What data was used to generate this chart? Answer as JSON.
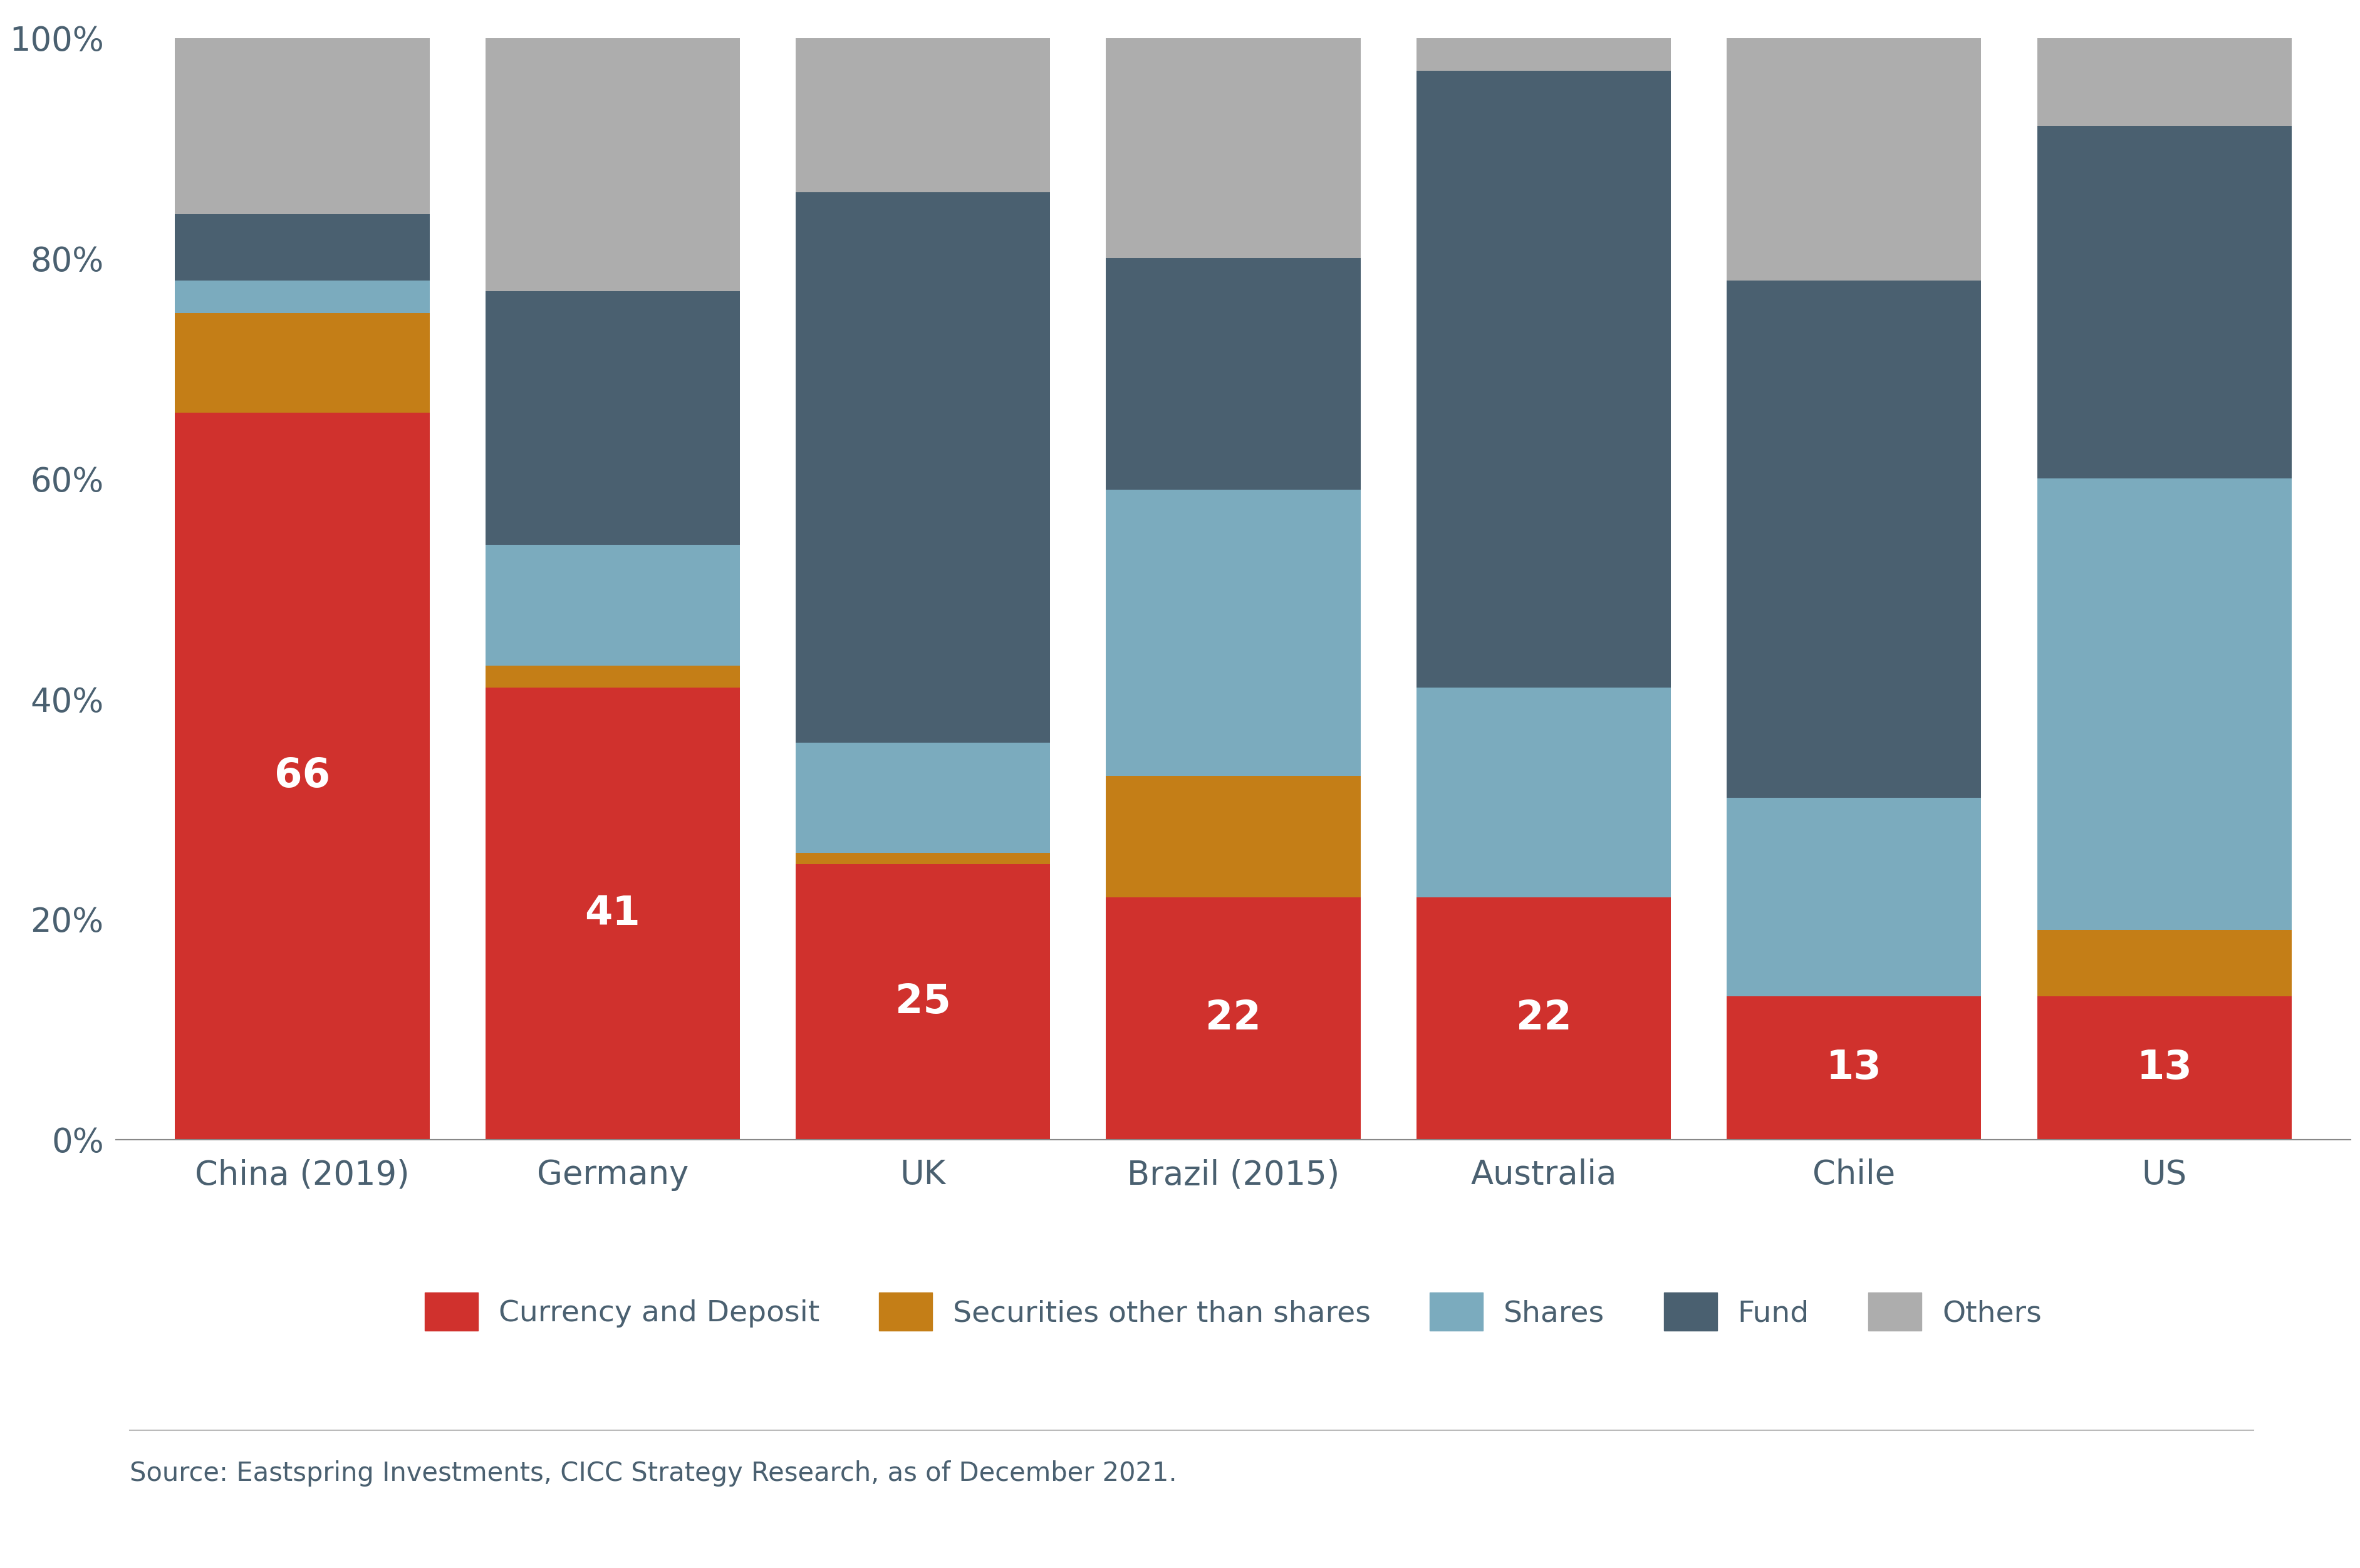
{
  "categories": [
    "China (2019)",
    "Germany",
    "UK",
    "Brazil (2015)",
    "Australia",
    "Chile",
    "US"
  ],
  "currency_deposit": [
    66,
    41,
    25,
    22,
    22,
    13,
    13
  ],
  "securities_other": [
    9,
    2,
    1,
    11,
    0,
    0,
    6
  ],
  "shares": [
    3,
    11,
    10,
    26,
    19,
    18,
    41
  ],
  "fund": [
    6,
    23,
    50,
    21,
    56,
    47,
    32
  ],
  "others": [
    16,
    23,
    14,
    20,
    3,
    22,
    8
  ],
  "labels_in_bar": [
    66,
    41,
    25,
    22,
    22,
    13,
    13
  ],
  "colors": {
    "currency_deposit": "#D0312D",
    "securities_other": "#C47E17",
    "shares": "#7BABBE",
    "fund": "#4A6070",
    "others": "#ADADAD"
  },
  "ylim": [
    0,
    100
  ],
  "yticks": [
    0,
    20,
    40,
    60,
    80,
    100
  ],
  "ytick_labels": [
    "0%",
    "20%",
    "40%",
    "60%",
    "80%",
    "100%"
  ],
  "legend_labels": [
    "Currency and Deposit",
    "Securities other than shares",
    "Shares",
    "Fund",
    "Others"
  ],
  "source_text": "Source: Eastspring Investments, CICC Strategy Research, as of December 2021.",
  "background_color": "#FFFFFF",
  "bar_width": 0.82,
  "label_fontsize": 46,
  "tick_fontsize": 38,
  "legend_fontsize": 34,
  "source_fontsize": 30,
  "text_color": "#4A6070"
}
